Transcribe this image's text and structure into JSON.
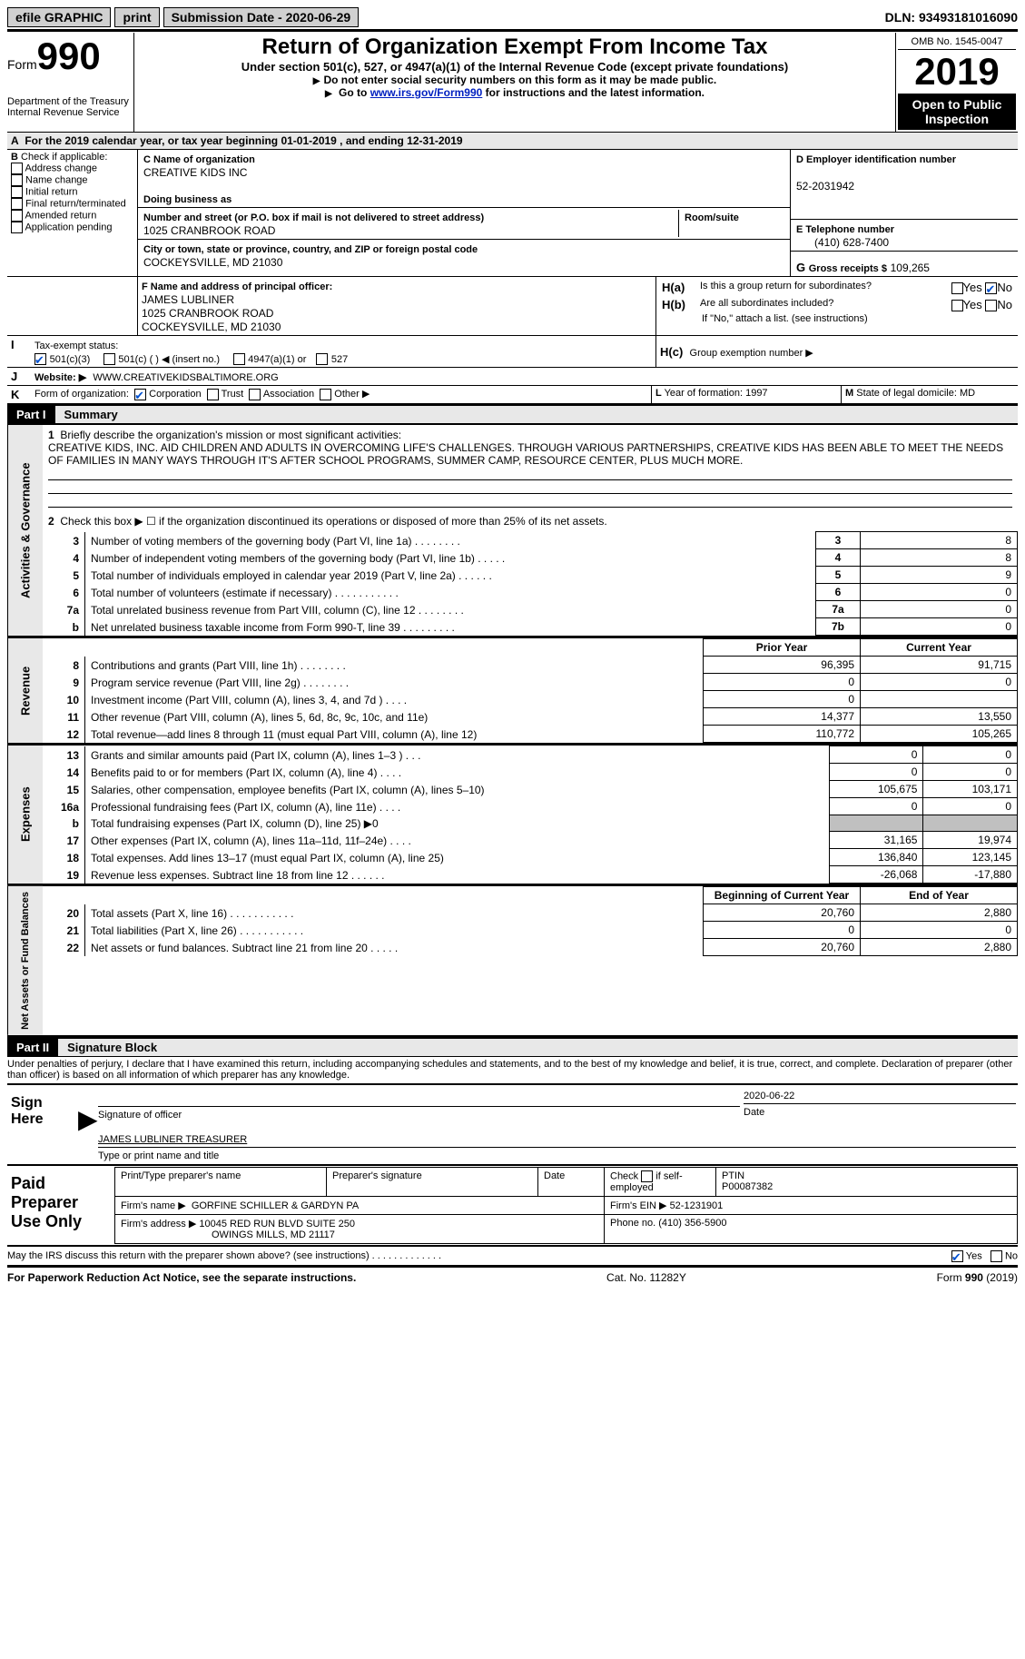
{
  "topbar": {
    "efile": "efile GRAPHIC",
    "print": "print",
    "sub_label": "Submission Date - 2020-06-29",
    "dln_label": "DLN: 93493181016090"
  },
  "header": {
    "form_label": "Form",
    "form_num": "990",
    "dept1": "Department of the Treasury",
    "dept2": "Internal Revenue Service",
    "title": "Return of Organization Exempt From Income Tax",
    "subtitle": "Under section 501(c), 527, or 4947(a)(1) of the Internal Revenue Code (except private foundations)",
    "note1": "Do not enter social security numbers on this form as it may be made public.",
    "note2_pre": "Go to ",
    "note2_link": "www.irs.gov/Form990",
    "note2_post": " for instructions and the latest information.",
    "omb": "OMB No. 1545-0047",
    "year": "2019",
    "open_pub": "Open to Public Inspection"
  },
  "rowA": "For the 2019 calendar year, or tax year beginning 01-01-2019   , and ending 12-31-2019",
  "boxB": {
    "label": "Check if applicable:",
    "items": [
      "Address change",
      "Name change",
      "Initial return",
      "Final return/terminated",
      "Amended return",
      "Application pending"
    ]
  },
  "boxC": {
    "name_label": "Name of organization",
    "name": "CREATIVE KIDS INC",
    "dba_label": "Doing business as",
    "dba": "",
    "addr_label": "Number and street (or P.O. box if mail is not delivered to street address)",
    "room_label": "Room/suite",
    "addr": "1025 CRANBROOK ROAD",
    "city_label": "City or town, state or province, country, and ZIP or foreign postal code",
    "city": "COCKEYSVILLE, MD  21030"
  },
  "boxD": {
    "label": "Employer identification number",
    "val": "52-2031942"
  },
  "boxE": {
    "label": "Telephone number",
    "val": "(410) 628-7400"
  },
  "boxG": {
    "label": "Gross receipts $",
    "val": "109,265"
  },
  "boxF": {
    "label": "Name and address of principal officer:",
    "name": "JAMES LUBLINER",
    "addr1": "1025 CRANBROOK ROAD",
    "addr2": "COCKEYSVILLE, MD  21030"
  },
  "boxH": {
    "a": "Is this a group return for subordinates?",
    "b": "Are all subordinates included?",
    "note": "If \"No,\" attach a list. (see instructions)",
    "c": "Group exemption number ▶",
    "yes": "Yes",
    "no": "No"
  },
  "rowI": {
    "label": "Tax-exempt status:",
    "o1": "501(c)(3)",
    "o2": "501(c) (   ) ◀ (insert no.)",
    "o3": "4947(a)(1) or",
    "o4": "527"
  },
  "rowJ": {
    "label": "Website: ▶",
    "val": "WWW.CREATIVEKIDSBALTIMORE.ORG"
  },
  "rowK": {
    "label": "Form of organization:",
    "o1": "Corporation",
    "o2": "Trust",
    "o3": "Association",
    "o4": "Other ▶"
  },
  "rowL": {
    "label": "Year of formation:",
    "val": "1997"
  },
  "rowM": {
    "label": "State of legal domicile:",
    "val": "MD"
  },
  "part1": {
    "hdr": "Part I",
    "title": "Summary",
    "l1_label": "Briefly describe the organization's mission or most significant activities:",
    "l1_text": "CREATIVE KIDS, INC. AID CHILDREN AND ADULTS IN OVERCOMING LIFE'S CHALLENGES. THROUGH VARIOUS PARTNERSHIPS, CREATIVE KIDS HAS BEEN ABLE TO MEET THE NEEDS OF FAMILIES IN MANY WAYS THROUGH IT'S AFTER SCHOOL PROGRAMS, SUMMER CAMP, RESOURCE CENTER, PLUS MUCH MORE.",
    "l2": "Check this box ▶ ☐  if the organization discontinued its operations or disposed of more than 25% of its net assets.",
    "lines": [
      {
        "no": "3",
        "desc": "Number of voting members of the governing body (Part VI, line 1a)   .    .    .    .    .    .    .    .",
        "box": "3",
        "val": "8"
      },
      {
        "no": "4",
        "desc": "Number of independent voting members of the governing body (Part VI, line 1b)   .    .    .    .    .",
        "box": "4",
        "val": "8"
      },
      {
        "no": "5",
        "desc": "Total number of individuals employed in calendar year 2019 (Part V, line 2a)   .    .    .    .    .    .",
        "box": "5",
        "val": "9"
      },
      {
        "no": "6",
        "desc": "Total number of volunteers (estimate if necessary)    .    .    .    .    .    .    .    .    .    .    .",
        "box": "6",
        "val": "0"
      },
      {
        "no": "7a",
        "desc": "Total unrelated business revenue from Part VIII, column (C), line 12   .    .    .    .    .    .    .    .",
        "box": "7a",
        "val": "0"
      },
      {
        "no": "b",
        "desc": "Net unrelated business taxable income from Form 990-T, line 39    .    .    .    .    .    .    .    .    .",
        "box": "7b",
        "val": "0"
      }
    ],
    "hdr_prior": "Prior Year",
    "hdr_current": "Current Year",
    "revenue": [
      {
        "no": "8",
        "desc": "Contributions and grants (Part VIII, line 1h)    .    .    .    .    .    .    .    .",
        "p": "96,395",
        "c": "91,715"
      },
      {
        "no": "9",
        "desc": "Program service revenue (Part VIII, line 2g)    .    .    .    .    .    .    .    .",
        "p": "0",
        "c": "0"
      },
      {
        "no": "10",
        "desc": "Investment income (Part VIII, column (A), lines 3, 4, and 7d )    .    .    .    .",
        "p": "0",
        "c": ""
      },
      {
        "no": "11",
        "desc": "Other revenue (Part VIII, column (A), lines 5, 6d, 8c, 9c, 10c, and 11e)",
        "p": "14,377",
        "c": "13,550"
      },
      {
        "no": "12",
        "desc": "Total revenue—add lines 8 through 11 (must equal Part VIII, column (A), line 12)",
        "p": "110,772",
        "c": "105,265"
      }
    ],
    "expenses": [
      {
        "no": "13",
        "desc": "Grants and similar amounts paid (Part IX, column (A), lines 1–3 )    .    .    .",
        "p": "0",
        "c": "0"
      },
      {
        "no": "14",
        "desc": "Benefits paid to or for members (Part IX, column (A), line 4)    .    .    .    .",
        "p": "0",
        "c": "0"
      },
      {
        "no": "15",
        "desc": "Salaries, other compensation, employee benefits (Part IX, column (A), lines 5–10)",
        "p": "105,675",
        "c": "103,171"
      },
      {
        "no": "16a",
        "desc": "Professional fundraising fees (Part IX, column (A), line 11e)    .    .    .    .",
        "p": "0",
        "c": "0"
      },
      {
        "no": "b",
        "desc": "Total fundraising expenses (Part IX, column (D), line 25) ▶0",
        "p": "shade",
        "c": "shade"
      },
      {
        "no": "17",
        "desc": "Other expenses (Part IX, column (A), lines 11a–11d, 11f–24e)    .    .    .    .",
        "p": "31,165",
        "c": "19,974"
      },
      {
        "no": "18",
        "desc": "Total expenses. Add lines 13–17 (must equal Part IX, column (A), line 25)",
        "p": "136,840",
        "c": "123,145"
      },
      {
        "no": "19",
        "desc": "Revenue less expenses. Subtract line 18 from line 12    .    .    .    .    .    .",
        "p": "-26,068",
        "c": "-17,880"
      }
    ],
    "hdr_boy": "Beginning of Current Year",
    "hdr_eoy": "End of Year",
    "netassets": [
      {
        "no": "20",
        "desc": "Total assets (Part X, line 16)    .    .    .    .    .    .    .    .    .    .    .",
        "p": "20,760",
        "c": "2,880"
      },
      {
        "no": "21",
        "desc": "Total liabilities (Part X, line 26)    .    .    .    .    .    .    .    .    .    .    .",
        "p": "0",
        "c": "0"
      },
      {
        "no": "22",
        "desc": "Net assets or fund balances. Subtract line 21 from line 20    .    .    .    .    .",
        "p": "20,760",
        "c": "2,880"
      }
    ]
  },
  "vside": {
    "ag": "Activities & Governance",
    "rev": "Revenue",
    "exp": "Expenses",
    "net": "Net Assets or Fund Balances"
  },
  "part2": {
    "hdr": "Part II",
    "title": "Signature Block",
    "decl": "Under penalties of perjury, I declare that I have examined this return, including accompanying schedules and statements, and to the best of my knowledge and belief, it is true, correct, and complete. Declaration of preparer (other than officer) is based on all information of which preparer has any knowledge."
  },
  "sign": {
    "label": "Sign Here",
    "sig_officer": "Signature of officer",
    "date": "2020-06-22",
    "date_label": "Date",
    "name": "JAMES LUBLINER  TREASURER",
    "name_label": "Type or print name and title"
  },
  "prep": {
    "label": "Paid Preparer Use Only",
    "h1": "Print/Type preparer's name",
    "h2": "Preparer's signature",
    "h3": "Date",
    "h4_a": "Check",
    "h4_b": "if self-employed",
    "h5": "PTIN",
    "ptin": "P00087382",
    "firm_label": "Firm's name    ▶",
    "firm": "GORFINE SCHILLER & GARDYN PA",
    "ein_label": "Firm's EIN ▶",
    "ein": "52-1231901",
    "addr_label": "Firm's address ▶",
    "addr1": "10045 RED RUN BLVD SUITE 250",
    "addr2": "OWINGS MILLS, MD  21117",
    "phone_label": "Phone no.",
    "phone": "(410) 356-5900"
  },
  "discuss": {
    "text": "May the IRS discuss this return with the preparer shown above? (see instructions)    .    .    .    .    .    .    .    .    .    .    .    .    .",
    "yes": "Yes",
    "no": "No"
  },
  "footer": {
    "left": "For Paperwork Reduction Act Notice, see the separate instructions.",
    "mid": "Cat. No. 11282Y",
    "right": "Form 990 (2019)"
  }
}
